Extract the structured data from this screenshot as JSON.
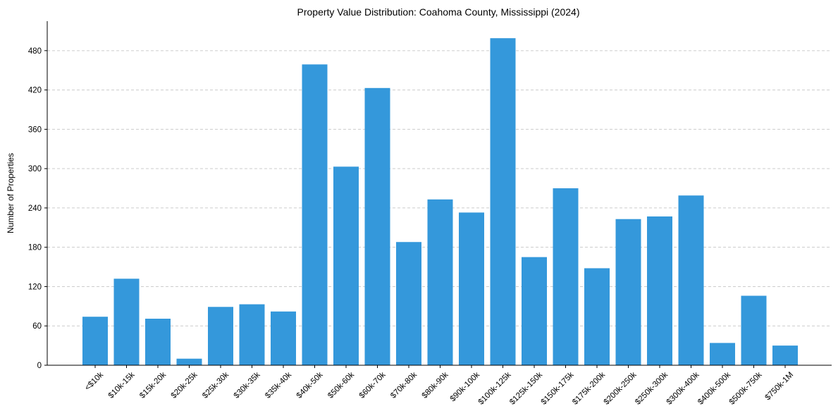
{
  "chart_data": {
    "type": "bar",
    "title": "Property Value Distribution: Coahoma County, Mississippi (2024)",
    "xlabel": "",
    "ylabel": "Number of Properties",
    "categories": [
      "<$10k",
      "$10k-15k",
      "$15k-20k",
      "$20k-25k",
      "$25k-30k",
      "$30k-35k",
      "$35k-40k",
      "$40k-50k",
      "$50k-60k",
      "$60k-70k",
      "$70k-80k",
      "$80k-90k",
      "$90k-100k",
      "$100k-125k",
      "$125k-150k",
      "$150k-175k",
      "$175k-200k",
      "$200k-250k",
      "$250k-300k",
      "$300k-400k",
      "$400k-500k",
      "$500k-750k",
      "$750k-1M"
    ],
    "values": [
      74,
      132,
      71,
      10,
      89,
      93,
      82,
      459,
      303,
      423,
      188,
      253,
      233,
      499,
      165,
      270,
      148,
      223,
      227,
      259,
      34,
      106,
      30
    ],
    "ylim": [
      0,
      525
    ],
    "yticks": [
      0,
      60,
      120,
      180,
      240,
      300,
      360,
      420,
      480
    ],
    "ytick_labels": [
      "0",
      "60",
      "120",
      "180",
      "240",
      "300",
      "360",
      "420",
      "480"
    ],
    "grid": "y, dashed",
    "colors": {
      "bar": "#3498db",
      "grid": "#cccccc",
      "axis": "#000000"
    }
  }
}
